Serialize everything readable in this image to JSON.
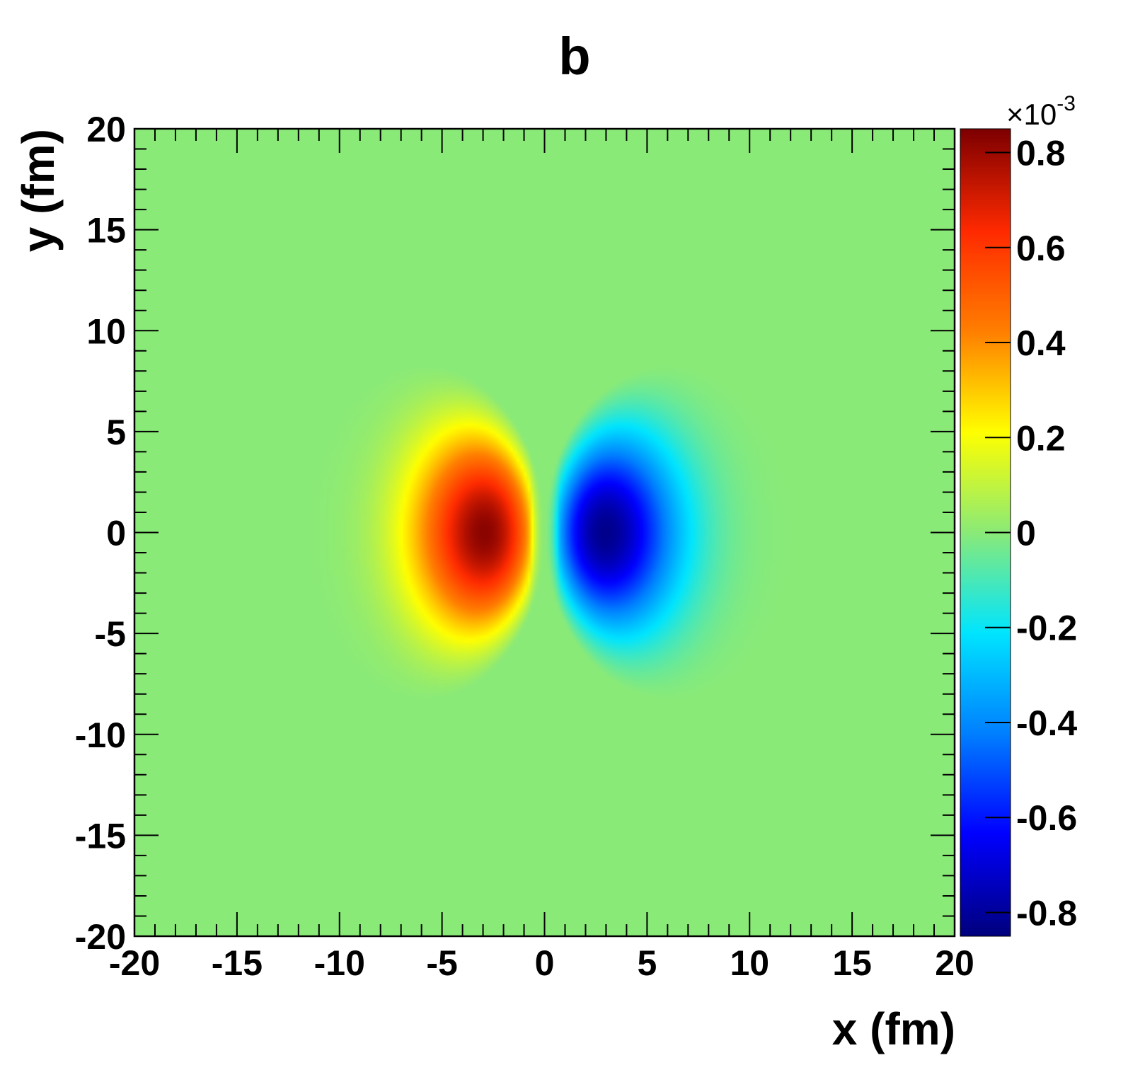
{
  "chart_data": {
    "type": "heatmap",
    "title": "b",
    "xlabel": "x (fm)",
    "ylabel": "y (fm)",
    "xlim": [
      -20,
      20
    ],
    "ylim": [
      -20,
      20
    ],
    "x_ticks": [
      -20,
      -15,
      -10,
      -5,
      0,
      5,
      10,
      15,
      20
    ],
    "y_ticks": [
      -20,
      -15,
      -10,
      -5,
      0,
      5,
      10,
      15,
      20
    ],
    "x_tick_labels": [
      "-20",
      "-15",
      "-10",
      "-5",
      "0",
      "5",
      "10",
      "15",
      "20"
    ],
    "y_tick_labels": [
      "-20",
      "-15",
      "-10",
      "-5",
      "0",
      "5",
      "10",
      "15",
      "20"
    ],
    "colorbar": {
      "multiplier_base": "×10",
      "multiplier_exponent": "-3",
      "range": [
        -0.85,
        0.85
      ],
      "ticks": [
        0.8,
        0.6,
        0.4,
        0.2,
        0,
        -0.2,
        -0.4,
        -0.6,
        -0.8
      ],
      "tick_labels": [
        "0.8",
        "0.6",
        "0.4",
        "0.2",
        "0",
        "-0.2",
        "-0.4",
        "-0.6",
        "-0.8"
      ],
      "colormap": [
        "#00007f",
        "#0000ff",
        "#007fff",
        "#00e5ff",
        "#8aea78",
        "#ffff00",
        "#ff7f00",
        "#ff2a00",
        "#7f0000"
      ]
    },
    "features": [
      {
        "sign": "positive",
        "peak_x": -2.7,
        "peak_y": 0,
        "peak_value": 0.85,
        "extent_x": [
          -12,
          0
        ],
        "extent_y": [
          -8.3,
          8.3
        ]
      },
      {
        "sign": "negative",
        "peak_x": 2.7,
        "peak_y": 0,
        "peak_value": -0.85,
        "extent_x": [
          0,
          12.5
        ],
        "extent_y": [
          -8.3,
          8.3
        ]
      }
    ],
    "background_value": 0,
    "grid": false
  }
}
